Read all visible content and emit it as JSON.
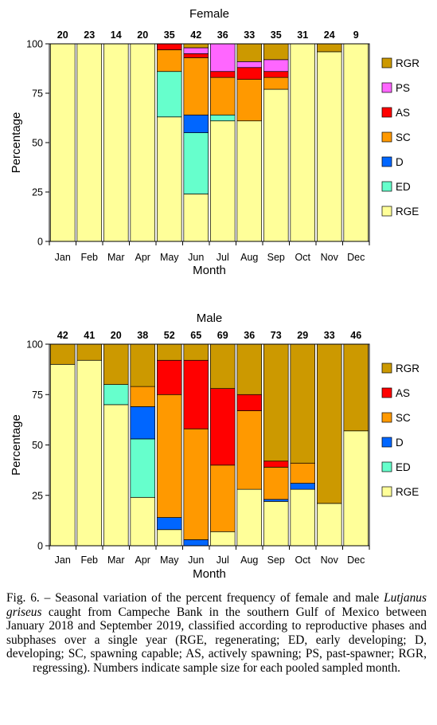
{
  "colors": {
    "RGE": "#ffff99",
    "ED": "#66ffcc",
    "D": "#0066ff",
    "SC": "#ff9900",
    "AS": "#ff0000",
    "PS": "#ff66ff",
    "RGR": "#cc9900"
  },
  "chart_data": [
    {
      "type": "bar",
      "stacked": true,
      "title": "Female",
      "xlabel": "Month",
      "ylabel": "Percentage",
      "ylim": [
        0,
        100
      ],
      "yticks": [
        0,
        25,
        50,
        75,
        100
      ],
      "legend_position": "right",
      "legend": [
        "RGR",
        "PS",
        "AS",
        "SC",
        "D",
        "ED",
        "RGE"
      ],
      "categories": [
        "Jan",
        "Feb",
        "Mar",
        "Apr",
        "May",
        "Jun",
        "Jul",
        "Aug",
        "Sep",
        "Oct",
        "Nov",
        "Dec"
      ],
      "sample_sizes": [
        "20",
        "23",
        "14",
        "20",
        "35",
        "42",
        "36",
        "33",
        "35",
        "31",
        "24",
        "9"
      ],
      "series": [
        {
          "name": "RGE",
          "values": [
            100,
            100,
            100,
            100,
            63,
            24,
            61,
            61,
            77,
            100,
            96,
            100
          ]
        },
        {
          "name": "ED",
          "values": [
            0,
            0,
            0,
            0,
            23,
            31,
            3,
            0,
            0,
            0,
            0,
            0
          ]
        },
        {
          "name": "D",
          "values": [
            0,
            0,
            0,
            0,
            0,
            9,
            0,
            0,
            0,
            0,
            0,
            0
          ]
        },
        {
          "name": "SC",
          "values": [
            0,
            0,
            0,
            0,
            11,
            29,
            19,
            21,
            6,
            0,
            0,
            0
          ]
        },
        {
          "name": "AS",
          "values": [
            0,
            0,
            0,
            0,
            3,
            2,
            3,
            6,
            3,
            0,
            0,
            0
          ]
        },
        {
          "name": "PS",
          "values": [
            0,
            0,
            0,
            0,
            0,
            3,
            14,
            3,
            6,
            0,
            0,
            0
          ]
        },
        {
          "name": "RGR",
          "values": [
            0,
            0,
            0,
            0,
            0,
            2,
            0,
            9,
            8,
            0,
            4,
            0
          ]
        }
      ]
    },
    {
      "type": "bar",
      "stacked": true,
      "title": "Male",
      "xlabel": "Month",
      "ylabel": "Percentage",
      "ylim": [
        0,
        100
      ],
      "yticks": [
        0,
        25,
        50,
        75,
        100
      ],
      "legend_position": "right",
      "legend": [
        "RGR",
        "AS",
        "SC",
        "D",
        "ED",
        "RGE"
      ],
      "categories": [
        "Jan",
        "Feb",
        "Mar",
        "Apr",
        "May",
        "Jun",
        "Jul",
        "Aug",
        "Sep",
        "Oct",
        "Nov",
        "Dec"
      ],
      "sample_sizes": [
        "42",
        "41",
        "20",
        "38",
        "52",
        "65",
        "69",
        "36",
        "73",
        "29",
        "33",
        "46"
      ],
      "series": [
        {
          "name": "RGE",
          "values": [
            90,
            92,
            70,
            24,
            8,
            0,
            7,
            28,
            22,
            28,
            21,
            57
          ]
        },
        {
          "name": "ED",
          "values": [
            0,
            0,
            10,
            29,
            0,
            0,
            0,
            0,
            0,
            0,
            0,
            0
          ]
        },
        {
          "name": "D",
          "values": [
            0,
            0,
            0,
            16,
            6,
            3,
            0,
            0,
            1,
            3,
            0,
            0
          ]
        },
        {
          "name": "SC",
          "values": [
            0,
            0,
            0,
            10,
            61,
            55,
            33,
            39,
            16,
            10,
            0,
            0
          ]
        },
        {
          "name": "AS",
          "values": [
            0,
            0,
            0,
            0,
            17,
            34,
            38,
            8,
            3,
            0,
            0,
            0
          ]
        },
        {
          "name": "RGR",
          "values": [
            10,
            8,
            20,
            21,
            8,
            8,
            22,
            25,
            58,
            59,
            79,
            43
          ]
        }
      ]
    }
  ],
  "caption": {
    "lead": "Fig. 6. – Seasonal variation of the percent frequency of female and male ",
    "species": "Lutjanus griseus",
    "rest": " caught from Campeche Bank in the southern Gulf of Mexico between January 2018 and September 2019, classified according to reproductive phases and subphases over a single year (RGE, regenerating; ED, early developing; D, developing; SC, spawning capable; AS, actively spawning; PS, past-spawner; RGR, regressing). Numbers indicate sample size for each pooled sampled month."
  }
}
